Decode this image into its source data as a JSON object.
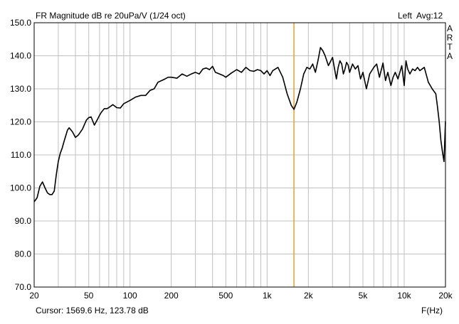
{
  "chart_data": {
    "type": "line",
    "title": "FR Magnitude dB re 20uPa/V (1/24 oct)",
    "channel_label": "Left",
    "averages_label": "Avg:12",
    "watermark": "ARTA",
    "xlabel": "F(Hz)",
    "ylabel": "",
    "x_scale": "log",
    "xlim": [
      20,
      20000
    ],
    "ylim": [
      70,
      150
    ],
    "grid": true,
    "x_tick_labels": [
      {
        "v": 20,
        "t": "20"
      },
      {
        "v": 50,
        "t": "50"
      },
      {
        "v": 100,
        "t": "100"
      },
      {
        "v": 200,
        "t": "200"
      },
      {
        "v": 500,
        "t": "500"
      },
      {
        "v": 1000,
        "t": "1k"
      },
      {
        "v": 2000,
        "t": "2k"
      },
      {
        "v": 5000,
        "t": "5k"
      },
      {
        "v": 10000,
        "t": "10k"
      },
      {
        "v": 20000,
        "t": "20k"
      }
    ],
    "x_minor_grid": [
      30,
      40,
      60,
      70,
      80,
      90,
      300,
      400,
      600,
      700,
      800,
      900,
      3000,
      4000,
      6000,
      7000,
      8000,
      9000
    ],
    "y_ticks": [
      70,
      80,
      90,
      100,
      110,
      120,
      130,
      140,
      150
    ],
    "y_tick_labels": [
      "70.0",
      "80.0",
      "90.0",
      "100.0",
      "110.0",
      "120.0",
      "130.0",
      "140.0",
      "150.0"
    ],
    "cursor": {
      "frequency": 1569.6,
      "text": "Cursor:  1569.6 Hz, 123.78 dB"
    },
    "colors": {
      "curve": "#000000",
      "cursor": "#e8a020",
      "grid": "#c0c0c0",
      "frame": "#000000"
    },
    "series": [
      {
        "x": [
          20,
          21,
          22,
          23,
          24,
          25,
          26,
          27,
          28,
          29,
          30,
          31,
          32,
          33,
          35,
          36,
          38,
          40,
          42,
          45,
          48,
          50,
          52,
          55,
          58,
          60,
          62,
          65,
          68,
          70,
          75,
          80,
          85,
          90,
          95,
          100,
          110,
          120,
          130,
          140,
          150,
          160,
          170,
          180,
          190,
          200,
          220,
          240,
          260,
          280,
          300,
          320,
          340,
          360,
          380,
          400,
          420,
          450,
          480,
          500,
          550,
          600,
          650,
          700,
          750,
          800,
          850,
          900,
          950,
          1000,
          1050,
          1100,
          1200,
          1300,
          1400,
          1500,
          1570,
          1650,
          1750,
          1850,
          1950,
          2050,
          2150,
          2250,
          2350,
          2450,
          2550,
          2650,
          2800,
          3000,
          3100,
          3200,
          3300,
          3400,
          3500,
          3600,
          3700,
          3800,
          3900,
          4000,
          4200,
          4400,
          4600,
          4800,
          5000,
          5300,
          5600,
          6000,
          6300,
          6600,
          7000,
          7300,
          7600,
          8000,
          8300,
          8600,
          9000,
          9300,
          9600,
          10000,
          10300,
          10600,
          11000,
          11500,
          12000,
          12500,
          13000,
          14000,
          15000,
          16000,
          17000,
          17500,
          18000,
          18500,
          19000,
          19500,
          20000
        ],
        "y": [
          95.8,
          97,
          100.5,
          101.8,
          100,
          98.5,
          98,
          98,
          99,
          104,
          108,
          110.5,
          112,
          114,
          117.5,
          118.2,
          117,
          115.3,
          116,
          117.8,
          120.5,
          121.3,
          121.5,
          119,
          120.8,
          122,
          123,
          124,
          124,
          124.3,
          125.2,
          124.3,
          124.2,
          125.5,
          126,
          126.5,
          127.5,
          128,
          128,
          129.5,
          130,
          132,
          132.5,
          133,
          133.5,
          133.5,
          133.2,
          134.5,
          133.8,
          134.5,
          135,
          134.5,
          136,
          136.3,
          135.8,
          136.8,
          135,
          134.5,
          134,
          133.5,
          134.8,
          135.8,
          135,
          136.5,
          135.5,
          135.3,
          135.8,
          135.5,
          134.5,
          135.5,
          134,
          135.5,
          136.5,
          133.5,
          128.5,
          125,
          123.78,
          126,
          130,
          134.5,
          136.5,
          136,
          137.5,
          135,
          138.5,
          142.5,
          141.5,
          140,
          137,
          139.5,
          136.2,
          133,
          136.5,
          138.5,
          137.5,
          134.5,
          136,
          138,
          137.2,
          135,
          137.5,
          136,
          137,
          133,
          135,
          130,
          134.5,
          136.5,
          137.5,
          133.5,
          137.8,
          132.5,
          135,
          131,
          133.5,
          135,
          133,
          135,
          137,
          131,
          138.5,
          136,
          134.5,
          136,
          135.5,
          136.5,
          135.5,
          136.5,
          132,
          130,
          128.5,
          124.5,
          120,
          114.5,
          111,
          108,
          120.2
        ]
      }
    ]
  }
}
